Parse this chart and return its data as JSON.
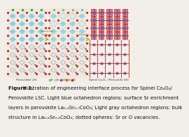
{
  "bg_color": "#f2efe8",
  "panel1_bg": "#f0ece0",
  "panel2_bg": "#f0ece0",
  "panel3_bg": "#faf0f0",
  "blue_oct": "#7ECFE8",
  "gray_oct": "#b8b8b8",
  "red_dot": "#dd2211",
  "green_dot": "#33aa33",
  "dark_dot": "#555555",
  "purple_dot": "#9944aa",
  "arrow_color": "#aaaa00",
  "font_size_caption": 5.0,
  "font_size_bold": 5.0,
  "caption_lines": [
    {
      "bold": "Figure 1.",
      "normal": "  Illustration of engineering interface process for Spinel Co₃O₄/"
    },
    {
      "bold": "",
      "normal": "Perovskite LSC. Light blue octahedron regions: surface Sr enrichment"
    },
    {
      "bold": "",
      "normal": "layers in perovskite La₀.₃Sr₀.₇CoO₃; Light gray octahedron regions: bulk"
    },
    {
      "bold": "",
      "normal": "structure in La₀.₅Sr₀.₅CoO₃; dotted spheres: Sr or O vacancies."
    }
  ],
  "panel1_label": "Perovskite LSC",
  "panel3_label": "Spinel Co₃O₄ / Perovskite LSC",
  "arrow1_text1": "structural",
  "arrow1_text2": "collapse",
  "arrow2_text": "reconstruction",
  "step1": "(1)",
  "step2": "(2)"
}
